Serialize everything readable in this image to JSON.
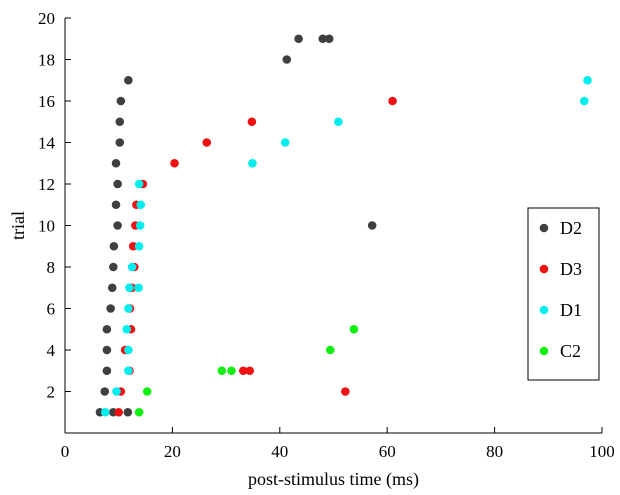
{
  "chart_data": {
    "type": "scatter",
    "title": "",
    "xlabel": "post-stimulus time (ms)",
    "ylabel": "trial",
    "xlim": [
      0,
      100
    ],
    "ylim": [
      0,
      20
    ],
    "xticks": [
      0,
      20,
      40,
      60,
      80,
      100
    ],
    "yticks": [
      2,
      4,
      6,
      8,
      10,
      12,
      14,
      16,
      18,
      20
    ],
    "grid": false,
    "legend_position": "right",
    "series": [
      {
        "name": "D2",
        "color": "#3f3f3f",
        "points": [
          [
            11.8,
            17
          ],
          [
            43.5,
            19
          ],
          [
            48,
            19
          ],
          [
            49.2,
            19
          ],
          [
            41.3,
            18
          ],
          [
            10.4,
            16
          ],
          [
            10.2,
            15
          ],
          [
            10.2,
            14
          ],
          [
            9.5,
            13
          ],
          [
            9.8,
            12
          ],
          [
            9.5,
            11
          ],
          [
            9.8,
            10
          ],
          [
            57.2,
            10
          ],
          [
            9.1,
            9
          ],
          [
            9,
            8
          ],
          [
            8.8,
            7
          ],
          [
            8.5,
            6
          ],
          [
            7.8,
            5
          ],
          [
            7.8,
            4
          ],
          [
            7.8,
            3
          ],
          [
            7.4,
            2
          ],
          [
            6.5,
            1
          ],
          [
            9,
            1
          ],
          [
            11.7,
            1
          ]
        ]
      },
      {
        "name": "D3",
        "color": "#ee1111",
        "points": [
          [
            61,
            16
          ],
          [
            34.8,
            15
          ],
          [
            26.4,
            14
          ],
          [
            20.4,
            13
          ],
          [
            14.5,
            12
          ],
          [
            13.3,
            11
          ],
          [
            13.1,
            10
          ],
          [
            12.7,
            9
          ],
          [
            12.9,
            8
          ],
          [
            12.5,
            7
          ],
          [
            12.1,
            6
          ],
          [
            12.3,
            5
          ],
          [
            11.2,
            4
          ],
          [
            12,
            3
          ],
          [
            33.2,
            3
          ],
          [
            34.4,
            3
          ],
          [
            10.4,
            2
          ],
          [
            52.2,
            2
          ],
          [
            10,
            1
          ]
        ]
      },
      {
        "name": "D1",
        "color": "#00eeee",
        "points": [
          [
            97.3,
            17
          ],
          [
            96.7,
            16
          ],
          [
            50.9,
            15
          ],
          [
            41,
            14
          ],
          [
            34.9,
            13
          ],
          [
            13.8,
            12
          ],
          [
            14.1,
            11
          ],
          [
            14,
            10
          ],
          [
            13.8,
            9
          ],
          [
            12.5,
            8
          ],
          [
            13.7,
            7
          ],
          [
            12,
            7
          ],
          [
            11.8,
            6
          ],
          [
            11.5,
            5
          ],
          [
            11.8,
            4
          ],
          [
            11.8,
            3
          ],
          [
            9.6,
            2
          ],
          [
            7.5,
            1
          ]
        ]
      },
      {
        "name": "C2",
        "color": "#11ee11",
        "points": [
          [
            53.8,
            5
          ],
          [
            49.4,
            4
          ],
          [
            29.2,
            3
          ],
          [
            31,
            3
          ],
          [
            15.3,
            2
          ],
          [
            13.8,
            1
          ]
        ]
      }
    ],
    "legend_order": [
      "D2",
      "D3",
      "D1",
      "C2"
    ]
  }
}
